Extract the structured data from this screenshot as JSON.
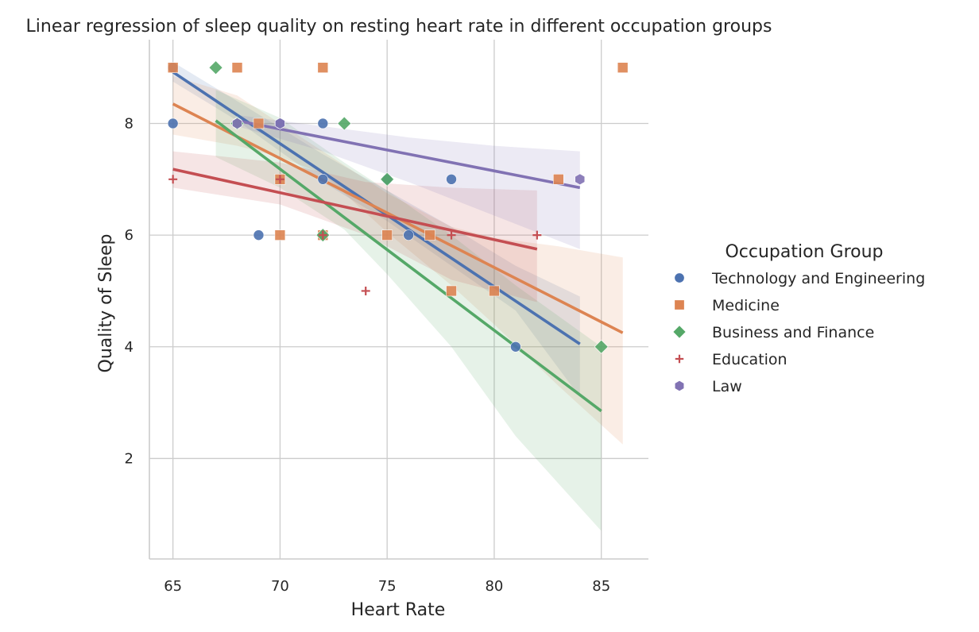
{
  "chart_data": {
    "type": "scatter",
    "title": "Linear regression of sleep quality on resting heart rate in different occupation groups",
    "xlabel": "Heart Rate",
    "ylabel": "Quality of Sleep",
    "xlim": [
      63.9,
      87.2
    ],
    "ylim": [
      0.2,
      9.5
    ],
    "xticks": [
      65,
      70,
      75,
      80,
      85
    ],
    "yticks": [
      2,
      4,
      6,
      8
    ],
    "grid": true,
    "legend": {
      "title": "Occupation Group",
      "placement": "right"
    },
    "series": [
      {
        "name": "Technology and Engineering",
        "color": "#4c72b0",
        "marker": "circle",
        "points": [
          [
            65,
            9
          ],
          [
            65,
            8
          ],
          [
            68,
            8
          ],
          [
            69,
            6
          ],
          [
            70,
            8
          ],
          [
            72,
            8
          ],
          [
            72,
            7
          ],
          [
            72,
            6
          ],
          [
            75,
            7
          ],
          [
            76,
            6
          ],
          [
            78,
            7
          ],
          [
            81,
            4
          ]
        ],
        "fit": {
          "x": [
            65,
            84
          ],
          "y": [
            8.92,
            4.05
          ]
        },
        "ci": {
          "x": [
            65,
            68,
            72,
            75,
            78,
            81,
            84
          ],
          "upper": [
            9.1,
            8.4,
            7.45,
            6.8,
            6.15,
            5.45,
            4.9
          ],
          "lower": [
            8.75,
            8.05,
            6.95,
            6.25,
            5.45,
            4.65,
            3.1
          ]
        }
      },
      {
        "name": "Medicine",
        "color": "#dd8452",
        "marker": "square",
        "points": [
          [
            65,
            9
          ],
          [
            68,
            9
          ],
          [
            69,
            8
          ],
          [
            70,
            7
          ],
          [
            70,
            6
          ],
          [
            72,
            9
          ],
          [
            72,
            6
          ],
          [
            75,
            6
          ],
          [
            77,
            6
          ],
          [
            78,
            5
          ],
          [
            80,
            5
          ],
          [
            83,
            7
          ],
          [
            86,
            9
          ]
        ],
        "fit": {
          "x": [
            65,
            86
          ],
          "y": [
            8.35,
            4.25
          ]
        },
        "ci": {
          "x": [
            65,
            68,
            70,
            72,
            75,
            78,
            80,
            83,
            86
          ],
          "upper": [
            8.85,
            8.5,
            8.0,
            7.5,
            6.75,
            6.15,
            5.95,
            5.8,
            5.6
          ],
          "lower": [
            7.8,
            7.6,
            7.4,
            7.1,
            6.05,
            5.1,
            4.4,
            3.3,
            2.25
          ]
        }
      },
      {
        "name": "Business and Finance",
        "color": "#55a868",
        "marker": "diamond",
        "points": [
          [
            67,
            9
          ],
          [
            68,
            8
          ],
          [
            72,
            6
          ],
          [
            73,
            8
          ],
          [
            75,
            7
          ],
          [
            85,
            4
          ]
        ],
        "fit": {
          "x": [
            67,
            85
          ],
          "y": [
            8.05,
            2.85
          ]
        },
        "ci": {
          "x": [
            67,
            70,
            73,
            75,
            78,
            81,
            85
          ],
          "upper": [
            8.6,
            8.1,
            7.3,
            6.8,
            6.0,
            5.1,
            4.0
          ],
          "lower": [
            7.4,
            6.85,
            6.1,
            5.3,
            4.0,
            2.4,
            0.7
          ]
        }
      },
      {
        "name": "Education",
        "color": "#c44e52",
        "marker": "plus",
        "points": [
          [
            65,
            7
          ],
          [
            70,
            7
          ],
          [
            72,
            6
          ],
          [
            74,
            5
          ],
          [
            78,
            6
          ],
          [
            82,
            6
          ]
        ],
        "fit": {
          "x": [
            65,
            82
          ],
          "y": [
            7.18,
            5.75
          ]
        },
        "ci": {
          "x": [
            65,
            70,
            74,
            78,
            82
          ],
          "upper": [
            7.5,
            7.3,
            6.95,
            6.85,
            6.8
          ],
          "lower": [
            6.85,
            6.55,
            6.0,
            5.2,
            4.8
          ]
        }
      },
      {
        "name": "Law",
        "color": "#8172b3",
        "marker": "hexagon",
        "points": [
          [
            68,
            8
          ],
          [
            70,
            8
          ],
          [
            84,
            7
          ]
        ],
        "fit": {
          "x": [
            68,
            84
          ],
          "y": [
            8.05,
            6.85
          ]
        },
        "ci": {
          "x": [
            68,
            72,
            76,
            80,
            84
          ],
          "upper": [
            8.15,
            7.95,
            7.75,
            7.6,
            7.5
          ],
          "lower": [
            7.95,
            7.5,
            6.95,
            6.35,
            5.75
          ]
        }
      }
    ]
  }
}
